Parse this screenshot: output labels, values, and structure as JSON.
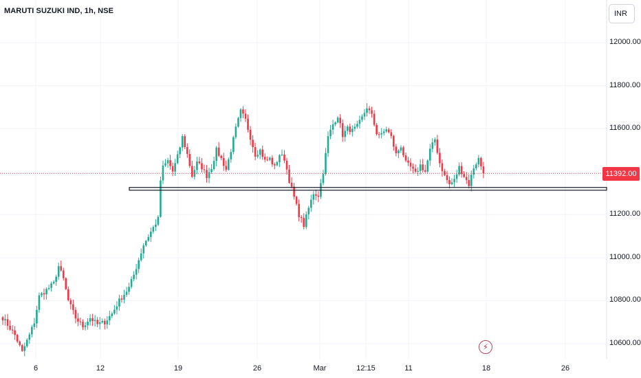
{
  "header": {
    "title": "MARUTI SUZUKI IND, 1h, NSE"
  },
  "currency_button": {
    "label": "INR"
  },
  "last_price_label": "11392.00",
  "colors": {
    "up": "#22ab94",
    "down": "#f23645",
    "grid": "#f0f3fa",
    "support_line": "#131722",
    "bolt": "#b0455b"
  },
  "icons": {
    "bolt": "lightning-bolt-icon"
  },
  "chart_data": {
    "type": "candlestick",
    "title": "MARUTI SUZUKI IND, 1h, NSE",
    "y_ticks": [
      "12000.00",
      "11800.00",
      "11600.00",
      "11200.00",
      "11000.00",
      "10800.00",
      "10600.00"
    ],
    "x_ticks": [
      "6",
      "12",
      "19",
      "26",
      "Mar",
      "12:15",
      "11",
      "18",
      "26"
    ],
    "ylim": [
      10550,
      12150
    ],
    "last_price": 11392,
    "support_level": 11320,
    "anchors": [
      [
        0,
        10720
      ],
      [
        5,
        10640
      ],
      [
        8,
        10560
      ],
      [
        11,
        10640
      ],
      [
        13,
        10700
      ],
      [
        15,
        10820
      ],
      [
        18,
        10850
      ],
      [
        21,
        10880
      ],
      [
        23,
        10960
      ],
      [
        25,
        10900
      ],
      [
        27,
        10800
      ],
      [
        30,
        10720
      ],
      [
        33,
        10680
      ],
      [
        36,
        10720
      ],
      [
        39,
        10690
      ],
      [
        42,
        10700
      ],
      [
        45,
        10740
      ],
      [
        48,
        10800
      ],
      [
        50,
        10830
      ],
      [
        52,
        10860
      ],
      [
        54,
        10920
      ],
      [
        56,
        10990
      ],
      [
        58,
        11060
      ],
      [
        61,
        11120
      ],
      [
        64,
        11180
      ],
      [
        65,
        11360
      ],
      [
        66,
        11420
      ],
      [
        68,
        11450
      ],
      [
        70,
        11400
      ],
      [
        72,
        11470
      ],
      [
        74,
        11560
      ],
      [
        76,
        11480
      ],
      [
        78,
        11380
      ],
      [
        80,
        11440
      ],
      [
        82,
        11420
      ],
      [
        84,
        11380
      ],
      [
        86,
        11420
      ],
      [
        88,
        11500
      ],
      [
        90,
        11460
      ],
      [
        92,
        11410
      ],
      [
        94,
        11500
      ],
      [
        96,
        11600
      ],
      [
        98,
        11680
      ],
      [
        100,
        11640
      ],
      [
        102,
        11560
      ],
      [
        104,
        11480
      ],
      [
        106,
        11500
      ],
      [
        108,
        11450
      ],
      [
        110,
        11460
      ],
      [
        112,
        11420
      ],
      [
        114,
        11480
      ],
      [
        116,
        11460
      ],
      [
        118,
        11360
      ],
      [
        120,
        11280
      ],
      [
        122,
        11200
      ],
      [
        124,
        11150
      ],
      [
        126,
        11230
      ],
      [
        128,
        11300
      ],
      [
        130,
        11290
      ],
      [
        132,
        11400
      ],
      [
        134,
        11560
      ],
      [
        136,
        11620
      ],
      [
        138,
        11660
      ],
      [
        140,
        11570
      ],
      [
        142,
        11600
      ],
      [
        144,
        11590
      ],
      [
        146,
        11610
      ],
      [
        148,
        11650
      ],
      [
        150,
        11700
      ],
      [
        152,
        11660
      ],
      [
        154,
        11580
      ],
      [
        156,
        11570
      ],
      [
        158,
        11600
      ],
      [
        160,
        11560
      ],
      [
        162,
        11480
      ],
      [
        164,
        11520
      ],
      [
        166,
        11440
      ],
      [
        168,
        11420
      ],
      [
        170,
        11390
      ],
      [
        172,
        11430
      ],
      [
        174,
        11400
      ],
      [
        176,
        11500
      ],
      [
        178,
        11550
      ],
      [
        180,
        11440
      ],
      [
        182,
        11380
      ],
      [
        184,
        11340
      ],
      [
        186,
        11360
      ],
      [
        188,
        11420
      ],
      [
        190,
        11380
      ],
      [
        192,
        11340
      ],
      [
        194,
        11420
      ],
      [
        196,
        11460
      ],
      [
        198,
        11392
      ]
    ]
  }
}
